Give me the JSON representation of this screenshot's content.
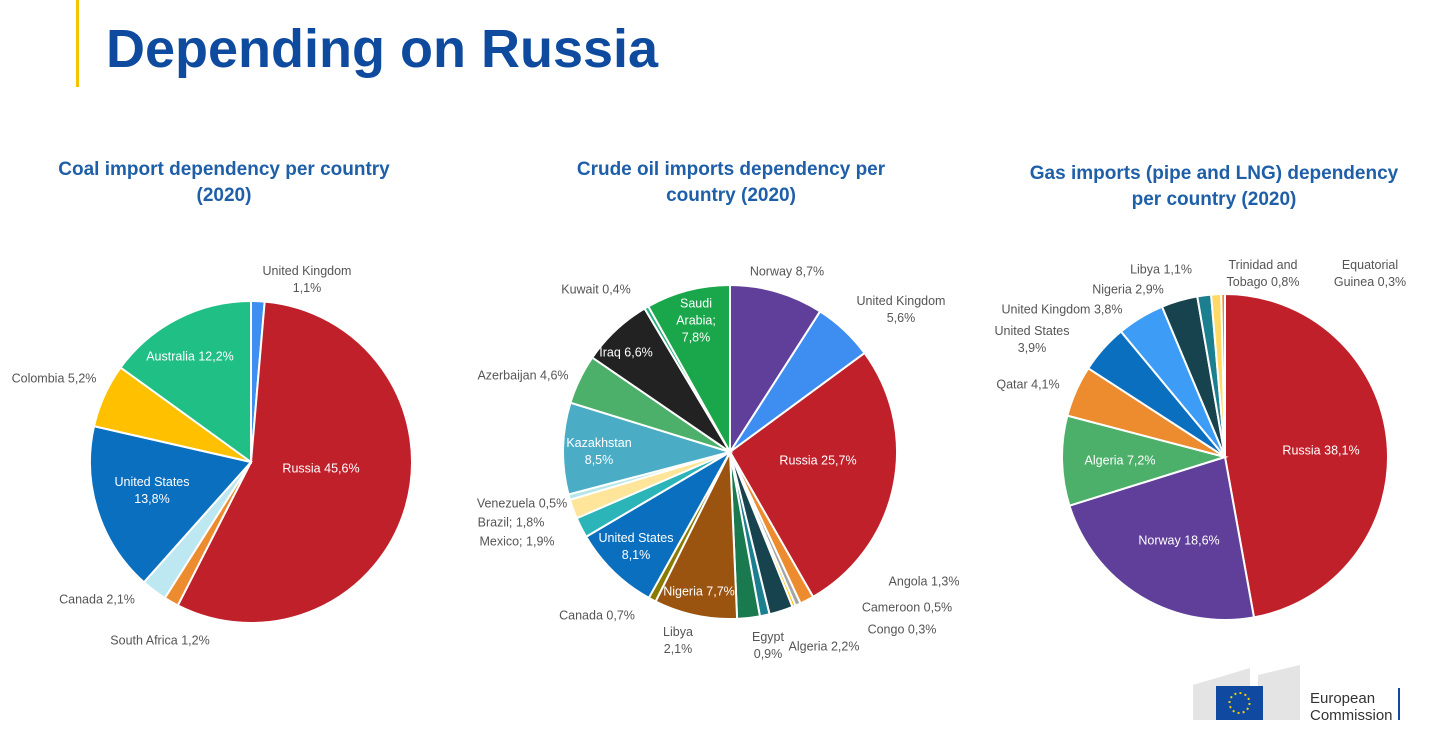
{
  "header": {
    "title": "Depending on Russia"
  },
  "chart_data": [
    {
      "type": "pie",
      "title": "Coal import dependency per country (2020)",
      "categories": [
        "United Kingdom",
        "Russia",
        "South Africa",
        "Canada",
        "United States",
        "Colombia",
        "Australia"
      ],
      "values": [
        1.1,
        45.6,
        1.2,
        2.1,
        13.8,
        5.2,
        12.2
      ],
      "value_labels": [
        "1,1%",
        "45,6%",
        "1,2%",
        "2,1%",
        "13,8%",
        "5,2%",
        "12,2%"
      ],
      "colors": [
        "#3d8ef0",
        "#c0202a",
        "#ed8b2f",
        "#bde8f2",
        "#0b6fbf",
        "#ffc000",
        "#1fbf85"
      ]
    },
    {
      "type": "pie",
      "title": "Crude oil imports dependency per country (2020)",
      "categories": [
        "Norway",
        "United Kingdom",
        "Russia",
        "Angola",
        "Cameroon",
        "Congo",
        "Algeria",
        "Egypt",
        "Libya",
        "Nigeria",
        "Canada",
        "United States",
        "Mexico;",
        "Brazil;",
        "Venezuela",
        "Kazakhstan",
        "Azerbaijan",
        "Iraq",
        "Kuwait",
        "Saudi Arabia;"
      ],
      "values": [
        8.7,
        5.6,
        25.7,
        1.3,
        0.5,
        0.3,
        2.2,
        0.9,
        2.1,
        7.7,
        0.7,
        8.1,
        1.9,
        1.8,
        0.5,
        8.5,
        4.6,
        6.6,
        0.4,
        7.8
      ],
      "value_labels": [
        "8,7%",
        "5,6%",
        "25,7%",
        "1,3%",
        "0,5%",
        "0,3%",
        "2,2%",
        "0,9%",
        "2,1%",
        "7,7%",
        "0,7%",
        "8,1%",
        "1,9%",
        "1,8%",
        "0,5%",
        "8,5%",
        "4,6%",
        "6,6%",
        "0,4%",
        "7,8%"
      ],
      "colors": [
        "#5f3f99",
        "#3d8ef0",
        "#c0202a",
        "#ed8b2f",
        "#a5a5a5",
        "#ffc000",
        "#17434f",
        "#1b7f8f",
        "#197a4f",
        "#9b5310",
        "#8a7a00",
        "#0b6fbf",
        "#2bb5b8",
        "#ffe599",
        "#b4e6ea",
        "#4bacc6",
        "#4caf6a",
        "#222222",
        "#2ab07e",
        "#1aa64a"
      ]
    },
    {
      "type": "pie",
      "title": "Gas imports (pipe and LNG) dependency per country (2020)",
      "categories": [
        "Russia",
        "Norway",
        "Algeria",
        "Qatar",
        "United States",
        "United Kingdom",
        "Nigeria",
        "Libya",
        "Trinidad and Tobago",
        "Equatorial Guinea"
      ],
      "values": [
        38.1,
        18.6,
        7.2,
        4.1,
        3.9,
        3.8,
        2.9,
        1.1,
        0.8,
        0.3
      ],
      "value_labels": [
        "38,1%",
        "18,6%",
        "7,2%",
        "4,1%",
        "3,9%",
        "3,8%",
        "2,9%",
        "1,1%",
        "0,8%",
        "0,3%"
      ],
      "colors": [
        "#c0202a",
        "#5f3f99",
        "#4caf6a",
        "#ed8b2f",
        "#0b6fbf",
        "#3d9cf5",
        "#17434f",
        "#1b7f8f",
        "#ffd966",
        "#ed8b2f"
      ]
    }
  ],
  "logo": {
    "line1": "European",
    "line2": "Commission"
  }
}
